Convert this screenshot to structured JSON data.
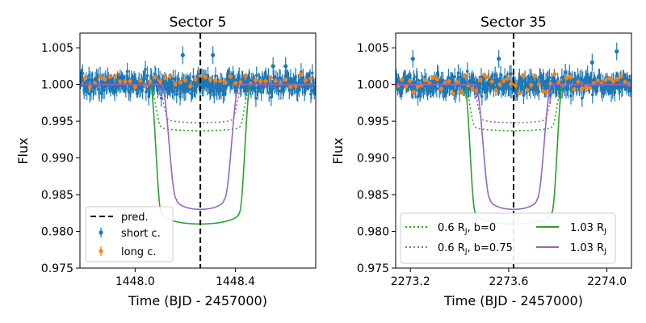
{
  "chart_data": [
    {
      "type": "line",
      "title": "Sector 5",
      "xlabel": "Time (BJD - 2457000)",
      "ylabel": "Flux",
      "xlim": [
        1447.78,
        1448.72
      ],
      "ylim": [
        0.975,
        1.007
      ],
      "x_ticks": [
        1448.0,
        1448.4
      ],
      "x_tick_labels": [
        "1448.0",
        "1448.4"
      ],
      "y_ticks": [
        0.975,
        0.98,
        0.985,
        0.99,
        0.995,
        1.0,
        1.005
      ],
      "y_tick_labels": [
        "0.975",
        "0.980",
        "0.985",
        "0.990",
        "0.995",
        "1.000",
        "1.005"
      ],
      "predicted_midtransit": 1448.26,
      "short_cadence": {
        "x_start": 1447.78,
        "x_end": 1448.72,
        "n": 340,
        "baseline": 1.0,
        "scatter": 0.0012,
        "seed": 7,
        "outliers": [
          {
            "x": 1448.19,
            "y": 1.004
          },
          {
            "x": 1448.31,
            "y": 1.004
          },
          {
            "x": 1448.55,
            "y": 1.0025
          },
          {
            "x": 1448.6,
            "y": 1.0025
          }
        ]
      },
      "long_cadence": {
        "x_start": 1447.8,
        "x_end": 1448.7,
        "n": 46,
        "baseline": 1.0005,
        "scatter": 0.0009,
        "seed": 21
      },
      "models": [
        {
          "name": "0.6 R_J, b=0",
          "style": "dotted",
          "color": "#2ca02c",
          "t0": 1448.26,
          "half_duration": 0.2,
          "ingress": 0.045,
          "depth": 0.0063
        },
        {
          "name": "0.6 R_J, b=0.75",
          "style": "dotted",
          "color": "#9467bd",
          "t0": 1448.26,
          "half_duration": 0.17,
          "ingress": 0.045,
          "depth": 0.0052
        },
        {
          "name": "1.03 R_J",
          "style": "solid",
          "color": "#2ca02c",
          "t0": 1448.26,
          "half_duration": 0.2,
          "ingress": 0.045,
          "depth": 0.019
        },
        {
          "name": "1.03 R_J",
          "style": "solid",
          "color": "#9467bd",
          "t0": 1448.26,
          "half_duration": 0.155,
          "ingress": 0.06,
          "depth": 0.017
        }
      ],
      "legend": {
        "location": "lower-left",
        "entries": [
          "pred.",
          "short c.",
          "long c."
        ]
      }
    },
    {
      "type": "line",
      "title": "Sector 35",
      "xlabel": "Time (BJD - 2457000)",
      "ylabel": "Flux",
      "xlim": [
        2273.14,
        2274.1
      ],
      "ylim": [
        0.975,
        1.007
      ],
      "x_ticks": [
        2273.2,
        2273.6,
        2274.0
      ],
      "x_tick_labels": [
        "2273.2",
        "2273.6",
        "2274.0"
      ],
      "y_ticks": [
        0.975,
        0.98,
        0.985,
        0.99,
        0.995,
        1.0,
        1.005
      ],
      "y_tick_labels": [
        "0.975",
        "0.980",
        "0.985",
        "0.990",
        "0.995",
        "1.000",
        "1.005"
      ],
      "predicted_midtransit": 2273.62,
      "short_cadence": {
        "x_start": 2273.14,
        "x_end": 2274.1,
        "n": 340,
        "baseline": 1.0,
        "scatter": 0.0012,
        "seed": 11,
        "outliers": [
          {
            "x": 2273.21,
            "y": 1.0035
          },
          {
            "x": 2273.56,
            "y": 1.0035
          },
          {
            "x": 2273.94,
            "y": 1.003
          },
          {
            "x": 2274.04,
            "y": 1.0045
          }
        ]
      },
      "long_cadence": {
        "x_start": 2273.15,
        "x_end": 2274.09,
        "n": 60,
        "baseline": 1.0,
        "scatter": 0.0012,
        "seed": 33
      },
      "models": [
        {
          "name": "0.6 R_J, b=0",
          "style": "dotted",
          "color": "#2ca02c",
          "t0": 2273.62,
          "half_duration": 0.2,
          "ingress": 0.045,
          "depth": 0.0063
        },
        {
          "name": "0.6 R_J, b=0.75",
          "style": "dotted",
          "color": "#9467bd",
          "t0": 2273.62,
          "half_duration": 0.17,
          "ingress": 0.045,
          "depth": 0.0052
        },
        {
          "name": "1.03 R_J",
          "style": "solid",
          "color": "#2ca02c",
          "t0": 2273.62,
          "half_duration": 0.2,
          "ingress": 0.045,
          "depth": 0.019
        },
        {
          "name": "1.03 R_J",
          "style": "solid",
          "color": "#9467bd",
          "t0": 2273.62,
          "half_duration": 0.155,
          "ingress": 0.06,
          "depth": 0.017
        }
      ],
      "legend": {
        "location": "lower-center",
        "entries": [
          "0.6 R_J, b=0",
          "0.6 R_J, b=0.75",
          "1.03 R_J",
          "1.03 R_J"
        ]
      }
    }
  ],
  "colors": {
    "short_cadence": "#1f77b4",
    "long_cadence": "#ff7f0e",
    "predicted_line": "#000000"
  },
  "legend_left": {
    "pred": "pred.",
    "short": "short c.",
    "long": "long c."
  },
  "legend_right": {
    "g_dot": "0.6 R",
    "g_dot_sub": "J",
    "g_dot_tail": ", b=0",
    "p_dot": "0.6 R",
    "p_dot_sub": "J",
    "p_dot_tail": ", b=0.75",
    "g_sol": "1.03 R",
    "g_sol_sub": "J",
    "p_sol": "1.03 R",
    "p_sol_sub": "J"
  }
}
